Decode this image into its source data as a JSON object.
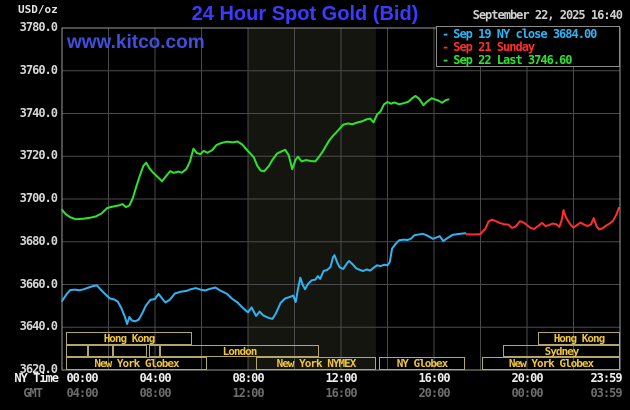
{
  "header": {
    "units": "USD/oz",
    "title": "24 Hour Spot Gold (Bid)",
    "title_color": "#3b3bff",
    "datetime": "September 22, 2025 16:40",
    "watermark": "www.kitco.com",
    "watermark_color": "#3f4fdc"
  },
  "legend": {
    "items": [
      {
        "dash": "-",
        "label": "Sep 19 NY close 3684.00",
        "color": "#2fb3f2"
      },
      {
        "dash": "-",
        "label": "Sep 21 Sunday",
        "color": "#ff2e2e"
      },
      {
        "dash": "-",
        "label": "Sep 22 Last 3746.60",
        "color": "#2ee32e"
      }
    ]
  },
  "axes": {
    "y_ticks": [
      "3780.0",
      "3760.0",
      "3740.0",
      "3720.0",
      "3700.0",
      "3680.0",
      "3660.0",
      "3640.0",
      "3620.0"
    ],
    "x_axis_rows": [
      {
        "name": "NY Time",
        "labels": [
          "00:00",
          "04:00",
          "08:00",
          "12:00",
          "16:00",
          "20:00",
          "23:59"
        ],
        "color": "#efefef"
      },
      {
        "name": "GMT",
        "labels": [
          "04:00",
          "08:00",
          "12:00",
          "16:00",
          "20:00",
          "00:00",
          "03:59"
        ],
        "color": "#6d6d6d"
      }
    ]
  },
  "sessions": {
    "text_color": "#eec43e",
    "border_color": "#b2a766",
    "rows": [
      {
        "boxes": [
          {
            "x1": 66,
            "x2": 192,
            "label": "Hong Kong"
          },
          {
            "x1": 538,
            "x2": 620,
            "label": "Hong Kong"
          }
        ]
      },
      {
        "boxes": [
          {
            "x1": 66,
            "x2": 88,
            "label": ""
          },
          {
            "x1": 88,
            "x2": 113,
            "label": ""
          },
          {
            "x1": 113,
            "x2": 147,
            "label": ""
          },
          {
            "x1": 149,
            "x2": 160,
            "label": ""
          },
          {
            "x1": 160,
            "x2": 319,
            "label": "London"
          },
          {
            "x1": 503,
            "x2": 620,
            "label": "Sydney"
          }
        ]
      },
      {
        "boxes": [
          {
            "x1": 66,
            "x2": 207,
            "label": "New York Globex"
          },
          {
            "x1": 256,
            "x2": 376,
            "label": "New York NYMEX"
          },
          {
            "x1": 379,
            "x2": 465,
            "label": "NY Globex"
          },
          {
            "x1": 482,
            "x2": 620,
            "label": "New York Globex"
          }
        ]
      }
    ]
  },
  "chart_data": {
    "type": "line",
    "title": "24 Hour Spot Gold (Bid)",
    "x_unit": "hours_ny_time",
    "xlim": [
      0,
      24
    ],
    "ylim": [
      3620,
      3780
    ],
    "grid": {
      "x_step_hours": 2,
      "y_step": 20,
      "color": "#4a4a4a",
      "border_color": "#9a9a9a"
    },
    "nymex_session_highlight": {
      "x1_hour": 8.0,
      "x2_hour": 13.5,
      "color": "#15150f"
    },
    "series": [
      {
        "name": "Sep 19 NY close",
        "color": "#2fb3f2",
        "final_value": 3684.0,
        "points": [
          [
            0,
            3652.3
          ],
          [
            0.2,
            3655.5
          ],
          [
            0.35,
            3657.4
          ],
          [
            0.55,
            3657.6
          ],
          [
            0.75,
            3657.3
          ],
          [
            0.95,
            3657.8
          ],
          [
            1.15,
            3658.6
          ],
          [
            1.35,
            3659.3
          ],
          [
            1.5,
            3659.6
          ],
          [
            1.65,
            3657.8
          ],
          [
            1.85,
            3655.6
          ],
          [
            2.05,
            3653.5
          ],
          [
            2.25,
            3653.0
          ],
          [
            2.4,
            3652.0
          ],
          [
            2.55,
            3649.0
          ],
          [
            2.7,
            3645.0
          ],
          [
            2.8,
            3641.5
          ],
          [
            2.9,
            3644.8
          ],
          [
            3.0,
            3643.2
          ],
          [
            3.15,
            3642.8
          ],
          [
            3.3,
            3643.6
          ],
          [
            3.45,
            3646.5
          ],
          [
            3.6,
            3650.0
          ],
          [
            3.8,
            3652.8
          ],
          [
            4.0,
            3653.2
          ],
          [
            4.15,
            3655.6
          ],
          [
            4.3,
            3653.5
          ],
          [
            4.45,
            3651.6
          ],
          [
            4.65,
            3653.0
          ],
          [
            4.85,
            3655.8
          ],
          [
            5.1,
            3656.6
          ],
          [
            5.35,
            3657.0
          ],
          [
            5.55,
            3657.8
          ],
          [
            5.75,
            3658.3
          ],
          [
            5.95,
            3657.6
          ],
          [
            6.15,
            3657.2
          ],
          [
            6.35,
            3657.9
          ],
          [
            6.6,
            3658.6
          ],
          [
            6.8,
            3657.2
          ],
          [
            7.1,
            3655.6
          ],
          [
            7.3,
            3653.5
          ],
          [
            7.55,
            3651.6
          ],
          [
            7.8,
            3648.8
          ],
          [
            8.0,
            3647.0
          ],
          [
            8.15,
            3649.3
          ],
          [
            8.35,
            3645.3
          ],
          [
            8.5,
            3647.3
          ],
          [
            8.65,
            3645.6
          ],
          [
            8.85,
            3644.5
          ],
          [
            9.05,
            3643.9
          ],
          [
            9.2,
            3646.5
          ],
          [
            9.4,
            3651.4
          ],
          [
            9.6,
            3653.5
          ],
          [
            9.8,
            3654.2
          ],
          [
            9.95,
            3654.8
          ],
          [
            10.05,
            3651.8
          ],
          [
            10.15,
            3658.0
          ],
          [
            10.25,
            3663.2
          ],
          [
            10.35,
            3660.0
          ],
          [
            10.45,
            3657.8
          ],
          [
            10.6,
            3660.5
          ],
          [
            10.75,
            3662.0
          ],
          [
            10.9,
            3662.3
          ],
          [
            11.0,
            3663.9
          ],
          [
            11.1,
            3662.6
          ],
          [
            11.25,
            3666.3
          ],
          [
            11.4,
            3666.8
          ],
          [
            11.55,
            3668.2
          ],
          [
            11.65,
            3672.6
          ],
          [
            11.72,
            3673.7
          ],
          [
            11.85,
            3670.0
          ],
          [
            11.95,
            3668.0
          ],
          [
            12.1,
            3667.3
          ],
          [
            12.25,
            3669.8
          ],
          [
            12.35,
            3671.0
          ],
          [
            12.5,
            3669.5
          ],
          [
            12.65,
            3667.6
          ],
          [
            12.8,
            3666.9
          ],
          [
            12.95,
            3666.3
          ],
          [
            13.1,
            3667.0
          ],
          [
            13.25,
            3666.5
          ],
          [
            13.4,
            3667.8
          ],
          [
            13.55,
            3669.0
          ],
          [
            13.7,
            3668.6
          ],
          [
            13.85,
            3669.2
          ],
          [
            14.0,
            3669.0
          ],
          [
            14.1,
            3670.5
          ],
          [
            14.2,
            3676.8
          ],
          [
            14.35,
            3679.0
          ],
          [
            14.5,
            3680.7
          ],
          [
            14.7,
            3681.0
          ],
          [
            14.85,
            3680.8
          ],
          [
            15.0,
            3681.4
          ],
          [
            15.15,
            3683.0
          ],
          [
            15.3,
            3683.3
          ],
          [
            15.5,
            3683.7
          ],
          [
            15.65,
            3683.2
          ],
          [
            15.95,
            3681.4
          ],
          [
            16.1,
            3682.0
          ],
          [
            16.25,
            3682.6
          ],
          [
            16.4,
            3680.3
          ],
          [
            16.55,
            3681.5
          ],
          [
            16.8,
            3683.2
          ],
          [
            17.0,
            3683.6
          ],
          [
            17.2,
            3683.8
          ],
          [
            17.35,
            3684.0
          ]
        ]
      },
      {
        "name": "Sep 21 Sunday",
        "color": "#ff2e2e",
        "points": [
          [
            17.4,
            3683.5
          ],
          [
            17.7,
            3683.4
          ],
          [
            18.0,
            3683.6
          ],
          [
            18.1,
            3685.0
          ],
          [
            18.2,
            3685.8
          ],
          [
            18.35,
            3689.5
          ],
          [
            18.5,
            3690.3
          ],
          [
            18.65,
            3689.7
          ],
          [
            18.8,
            3688.9
          ],
          [
            19.0,
            3688.2
          ],
          [
            19.2,
            3688.0
          ],
          [
            19.35,
            3686.5
          ],
          [
            19.5,
            3687.0
          ],
          [
            19.7,
            3689.6
          ],
          [
            19.85,
            3689.0
          ],
          [
            20.0,
            3687.8
          ],
          [
            20.15,
            3686.5
          ],
          [
            20.3,
            3686.0
          ],
          [
            20.5,
            3687.5
          ],
          [
            20.65,
            3688.8
          ],
          [
            20.8,
            3687.3
          ],
          [
            20.95,
            3687.8
          ],
          [
            21.1,
            3688.5
          ],
          [
            21.25,
            3688.2
          ],
          [
            21.4,
            3687.0
          ],
          [
            21.5,
            3690.5
          ],
          [
            21.57,
            3694.8
          ],
          [
            21.65,
            3692.0
          ],
          [
            21.75,
            3690.0
          ],
          [
            21.9,
            3687.5
          ],
          [
            22.0,
            3686.6
          ],
          [
            22.15,
            3687.8
          ],
          [
            22.3,
            3689.0
          ],
          [
            22.45,
            3688.0
          ],
          [
            22.6,
            3687.4
          ],
          [
            22.75,
            3688.0
          ],
          [
            22.87,
            3691.0
          ],
          [
            23.0,
            3687.0
          ],
          [
            23.1,
            3685.8
          ],
          [
            23.25,
            3686.3
          ],
          [
            23.4,
            3687.5
          ],
          [
            23.55,
            3688.5
          ],
          [
            23.7,
            3689.8
          ],
          [
            23.85,
            3692.8
          ],
          [
            23.95,
            3695.8
          ]
        ]
      },
      {
        "name": "Sep 22 Last",
        "color": "#2ee32e",
        "final_value": 3746.6,
        "points": [
          [
            0,
            3695.0
          ],
          [
            0.15,
            3693.0
          ],
          [
            0.35,
            3691.5
          ],
          [
            0.6,
            3690.5
          ],
          [
            0.9,
            3690.8
          ],
          [
            1.2,
            3691.2
          ],
          [
            1.45,
            3691.8
          ],
          [
            1.7,
            3693.2
          ],
          [
            1.95,
            3695.8
          ],
          [
            2.2,
            3696.5
          ],
          [
            2.45,
            3697.0
          ],
          [
            2.6,
            3697.6
          ],
          [
            2.75,
            3696.2
          ],
          [
            2.9,
            3697.0
          ],
          [
            3.05,
            3700.5
          ],
          [
            3.2,
            3706.0
          ],
          [
            3.35,
            3711.0
          ],
          [
            3.5,
            3715.5
          ],
          [
            3.62,
            3717.0
          ],
          [
            3.75,
            3714.5
          ],
          [
            3.9,
            3712.5
          ],
          [
            4.1,
            3710.5
          ],
          [
            4.3,
            3708.3
          ],
          [
            4.5,
            3711.0
          ],
          [
            4.65,
            3713.0
          ],
          [
            4.8,
            3712.2
          ],
          [
            5.0,
            3712.8
          ],
          [
            5.15,
            3712.3
          ],
          [
            5.35,
            3714.0
          ],
          [
            5.5,
            3717.5
          ],
          [
            5.65,
            3723.5
          ],
          [
            5.8,
            3721.5
          ],
          [
            5.95,
            3721.0
          ],
          [
            6.1,
            3722.5
          ],
          [
            6.25,
            3721.6
          ],
          [
            6.45,
            3722.8
          ],
          [
            6.65,
            3725.3
          ],
          [
            6.85,
            3726.2
          ],
          [
            7.1,
            3726.8
          ],
          [
            7.35,
            3726.5
          ],
          [
            7.55,
            3726.9
          ],
          [
            7.75,
            3725.5
          ],
          [
            7.95,
            3723.0
          ],
          [
            8.1,
            3721.3
          ],
          [
            8.25,
            3719.5
          ],
          [
            8.4,
            3715.5
          ],
          [
            8.55,
            3713.3
          ],
          [
            8.7,
            3713.0
          ],
          [
            8.9,
            3715.5
          ],
          [
            9.05,
            3718.3
          ],
          [
            9.25,
            3721.3
          ],
          [
            9.45,
            3722.3
          ],
          [
            9.6,
            3723.0
          ],
          [
            9.75,
            3720.5
          ],
          [
            9.9,
            3714.0
          ],
          [
            10.05,
            3718.5
          ],
          [
            10.15,
            3719.8
          ],
          [
            10.3,
            3717.6
          ],
          [
            10.5,
            3718.2
          ],
          [
            10.7,
            3717.8
          ],
          [
            10.9,
            3717.6
          ],
          [
            11.0,
            3719.0
          ],
          [
            11.2,
            3722.0
          ],
          [
            11.35,
            3724.8
          ],
          [
            11.5,
            3727.5
          ],
          [
            11.65,
            3729.5
          ],
          [
            11.8,
            3731.2
          ],
          [
            11.95,
            3733.0
          ],
          [
            12.1,
            3734.8
          ],
          [
            12.3,
            3735.3
          ],
          [
            12.5,
            3735.0
          ],
          [
            12.7,
            3735.8
          ],
          [
            12.9,
            3736.3
          ],
          [
            13.1,
            3737.3
          ],
          [
            13.25,
            3737.6
          ],
          [
            13.4,
            3735.9
          ],
          [
            13.55,
            3739.5
          ],
          [
            13.7,
            3741.0
          ],
          [
            13.85,
            3744.3
          ],
          [
            14.0,
            3745.4
          ],
          [
            14.15,
            3744.6
          ],
          [
            14.3,
            3745.2
          ],
          [
            14.5,
            3744.3
          ],
          [
            14.7,
            3744.8
          ],
          [
            14.9,
            3745.5
          ],
          [
            15.05,
            3747.0
          ],
          [
            15.2,
            3748.2
          ],
          [
            15.35,
            3747.0
          ],
          [
            15.55,
            3743.9
          ],
          [
            15.7,
            3745.5
          ],
          [
            15.9,
            3747.1
          ],
          [
            16.05,
            3746.6
          ],
          [
            16.2,
            3746.0
          ],
          [
            16.35,
            3745.0
          ],
          [
            16.5,
            3746.2
          ],
          [
            16.62,
            3746.6
          ]
        ]
      }
    ]
  }
}
